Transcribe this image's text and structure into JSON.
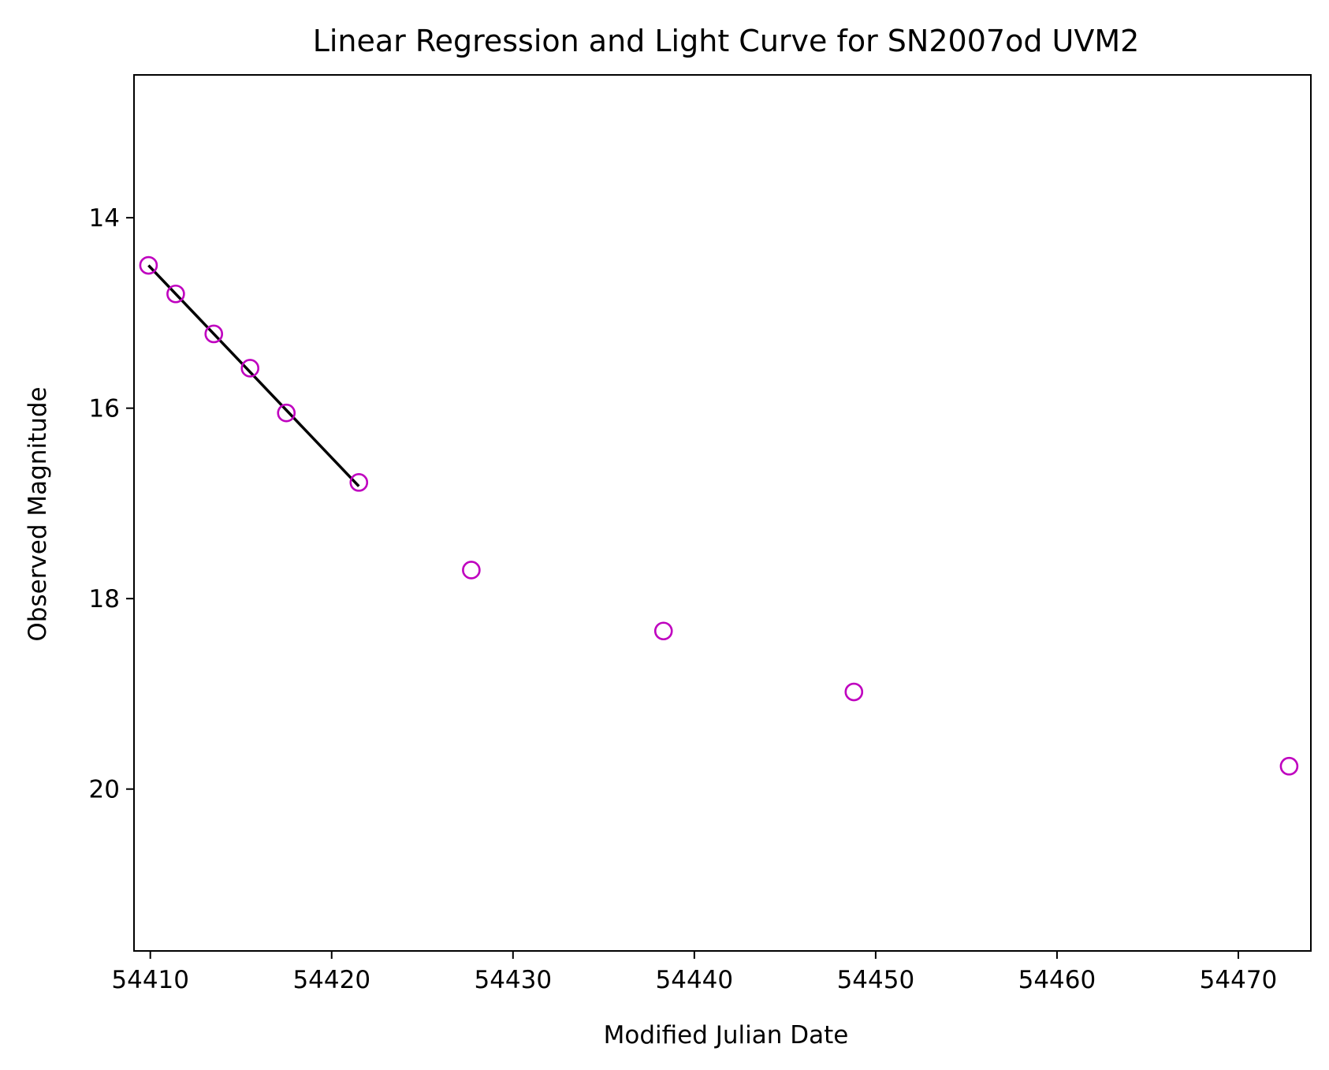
{
  "chart_data": {
    "type": "scatter",
    "title": "Linear Regression and Light Curve for SN2007od UVM2",
    "xlabel": "Modified Julian Date",
    "ylabel": "Observed Magnitude",
    "xlim": [
      54409.1,
      54474.0
    ],
    "ylim": [
      21.7,
      12.5
    ],
    "y_inverted": true,
    "grid": false,
    "xticks": [
      54410,
      54420,
      54430,
      54440,
      54450,
      54460,
      54470
    ],
    "xtick_labels": [
      "54410",
      "54420",
      "54430",
      "54440",
      "54450",
      "54460",
      "54470"
    ],
    "yticks": [
      14,
      16,
      18,
      20
    ],
    "ytick_labels": [
      "14",
      "16",
      "18",
      "20"
    ],
    "colors": {
      "points": "#bf00bf",
      "fit": "#000000",
      "axes": "#000000"
    },
    "series": [
      {
        "kind": "points",
        "marker": "open-circle",
        "x": [
          54409.9,
          54411.4,
          54413.5,
          54415.5,
          54417.5,
          54421.5,
          54427.7,
          54438.3,
          54448.8,
          54472.8
        ],
        "y": [
          14.5,
          14.8,
          15.22,
          15.58,
          16.05,
          16.78,
          17.7,
          18.34,
          18.98,
          19.76
        ]
      },
      {
        "kind": "line",
        "x": [
          54409.9,
          54421.5
        ],
        "y": [
          14.5,
          16.82
        ]
      }
    ]
  }
}
